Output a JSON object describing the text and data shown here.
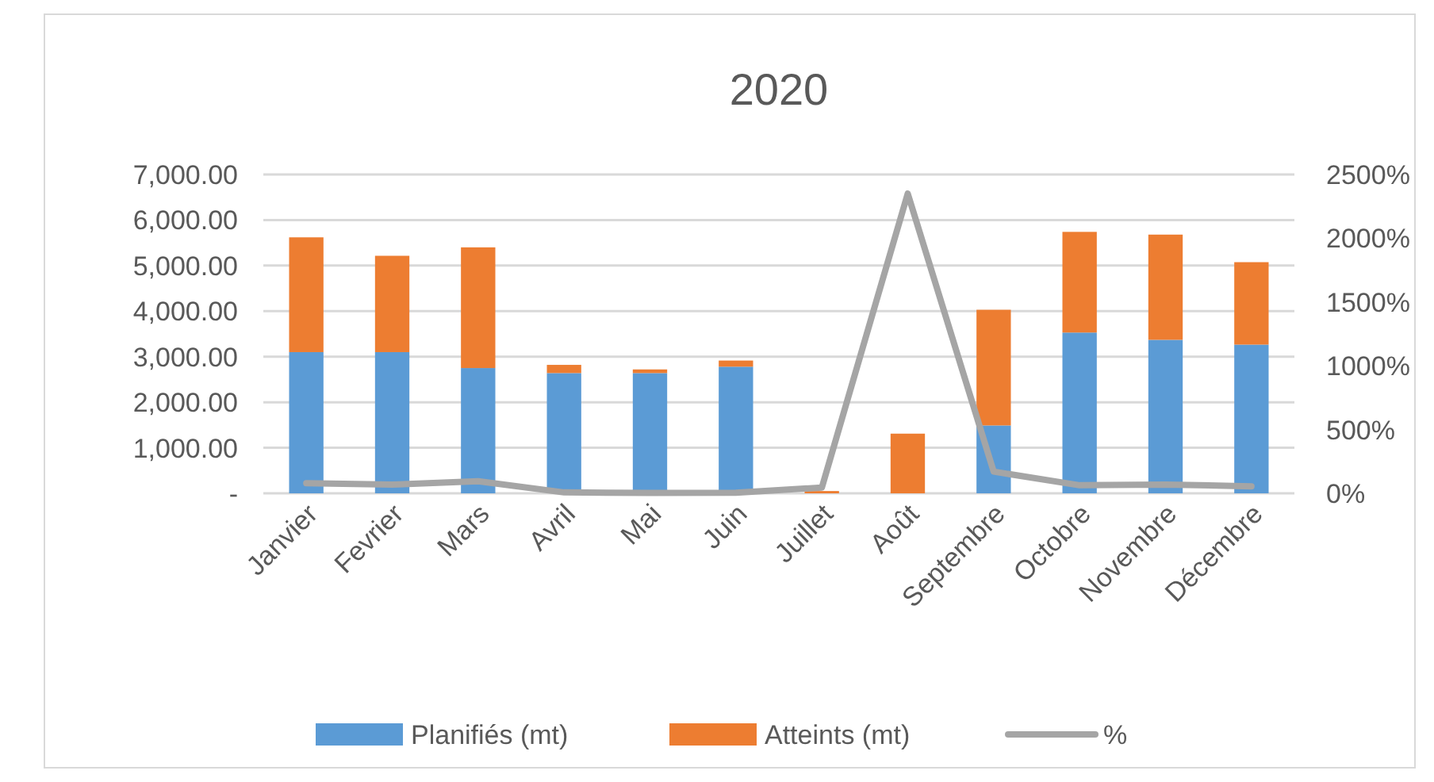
{
  "chart_data": {
    "type": "bar",
    "title": "2020",
    "stacked": true,
    "categories": [
      "Janvier",
      "Fevrier",
      "Mars",
      "Avril",
      "Mai",
      "Juin",
      "Juillet",
      "Août",
      "Septembre",
      "Octobre",
      "Novembre",
      "Décembre"
    ],
    "series": [
      {
        "name": "Planifiés (mt)",
        "color": "#5b9bd5",
        "values": [
          3100,
          3100,
          2750,
          2640,
          2640,
          2780,
          0,
          0,
          1490,
          3530,
          3370,
          3265
        ]
      },
      {
        "name": "Atteints (mt)",
        "color": "#ed7d31",
        "values": [
          2520,
          2115,
          2650,
          180,
          80,
          135,
          50,
          1310,
          2540,
          2210,
          2310,
          1810
        ]
      },
      {
        "name": "%",
        "color": "#a5a5a5",
        "type": "line",
        "axis": "y2",
        "values": [
          80,
          68,
          95,
          7,
          3,
          5,
          45,
          2350,
          170,
          63,
          69,
          55
        ]
      }
    ],
    "ylim": [
      0,
      7000
    ],
    "yticks": [
      {
        "value": 0,
        "label": "-"
      },
      {
        "value": 1000,
        "label": "1,000.00"
      },
      {
        "value": 2000,
        "label": "2,000.00"
      },
      {
        "value": 3000,
        "label": "3,000.00"
      },
      {
        "value": 4000,
        "label": "4,000.00"
      },
      {
        "value": 5000,
        "label": "5,000.00"
      },
      {
        "value": 6000,
        "label": "6,000.00"
      },
      {
        "value": 7000,
        "label": "7,000.00"
      }
    ],
    "y2lim": [
      0,
      2500
    ],
    "y2ticks": [
      {
        "value": 0,
        "label": "0%"
      },
      {
        "value": 500,
        "label": "500%"
      },
      {
        "value": 1000,
        "label": "1000%"
      },
      {
        "value": 1500,
        "label": "1500%"
      },
      {
        "value": 2000,
        "label": "2000%"
      },
      {
        "value": 2500,
        "label": "2500%"
      }
    ],
    "grid": "y",
    "legend": "bottom",
    "marker": "none",
    "line_style": "solid"
  }
}
